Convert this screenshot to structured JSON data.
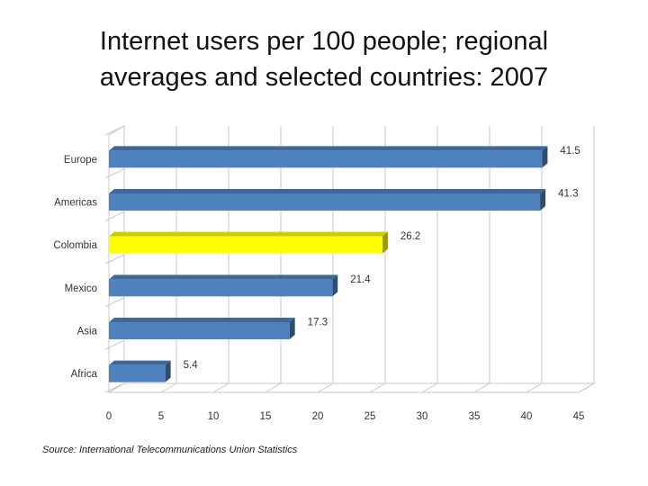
{
  "title_line1": "Internet users per 100 people; regional",
  "title_line2": "averages and selected countries: 2007",
  "source": "Source: International Telecommunications Union Statistics",
  "chart_data": {
    "type": "bar",
    "orientation": "horizontal",
    "categories": [
      "Europe",
      "Americas",
      "Colombia",
      "Mexico",
      "Asia",
      "Africa"
    ],
    "values": [
      41.5,
      41.3,
      26.2,
      21.4,
      17.3,
      5.4
    ],
    "value_labels": [
      "41.5",
      "41.3",
      "26.2",
      "21.4",
      "17.3",
      "5.4"
    ],
    "xlim": [
      0,
      45
    ],
    "x_ticks": [
      "0",
      "5",
      "10",
      "15",
      "20",
      "25",
      "30",
      "35",
      "40",
      "45"
    ],
    "grid": true,
    "style": "3d",
    "colors": {
      "default_bar": "#4f81bd",
      "highlight_bar": "#ffff00",
      "highlight_category": "Colombia",
      "grid": "#c8c8c8"
    }
  }
}
